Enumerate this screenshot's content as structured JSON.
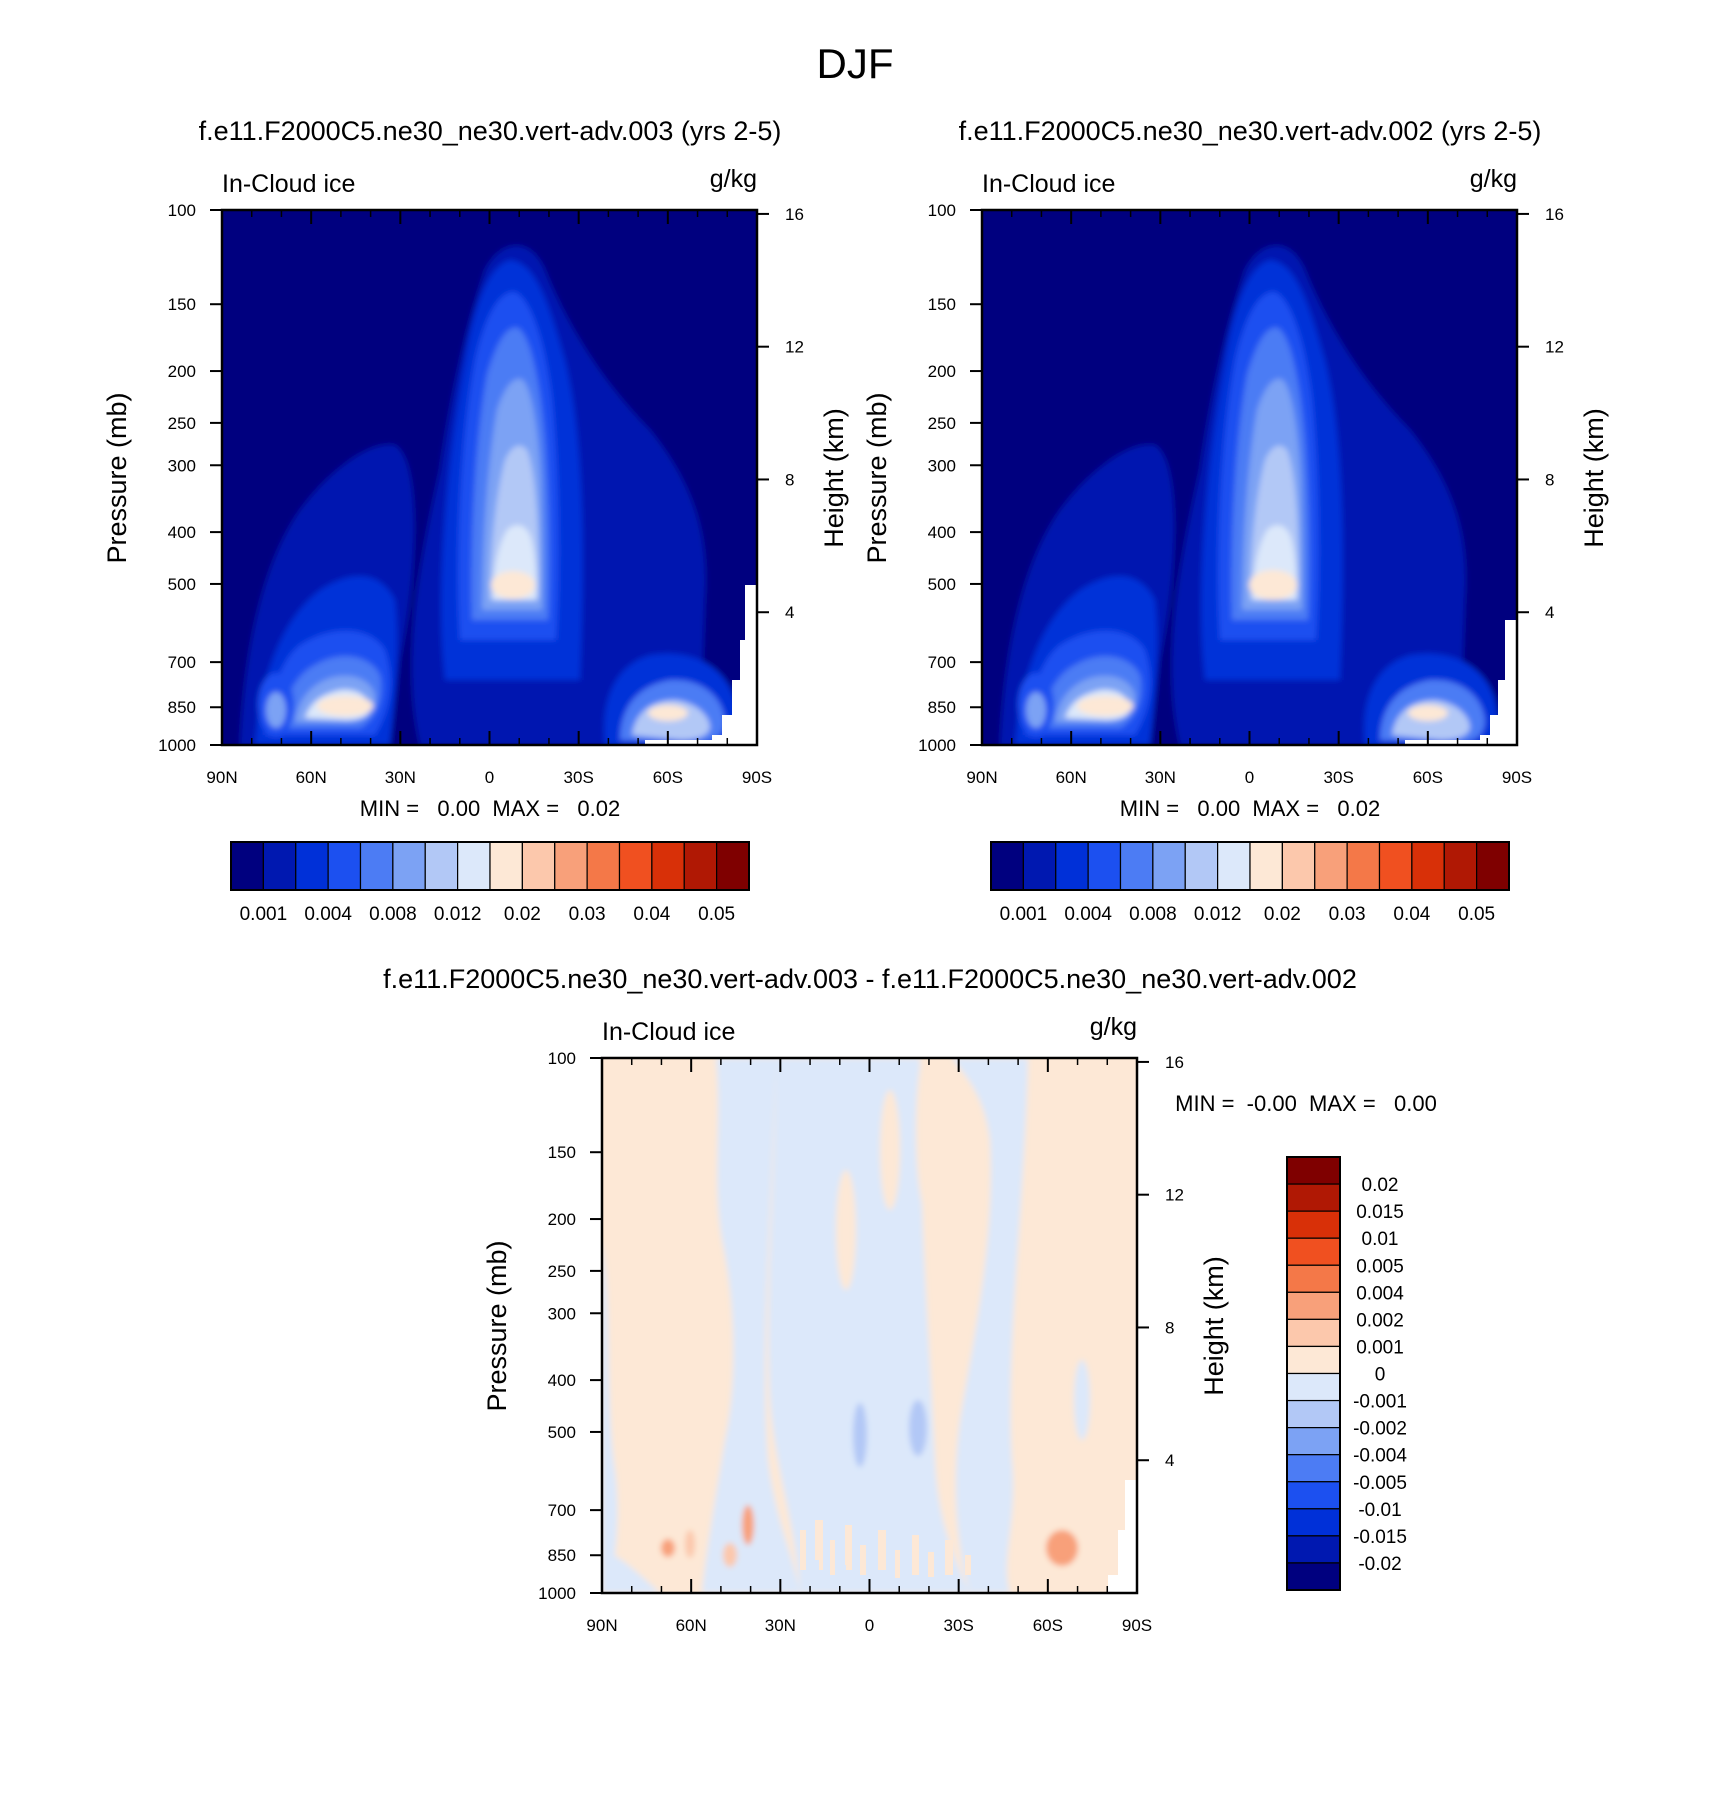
{
  "figure": {
    "title": "DJF"
  },
  "panels": [
    {
      "id": "case",
      "subtitle": "f.e11.F2000C5.ne30_ne30.vert-adv.003 (yrs 2-5)",
      "left_label": "In-Cloud ice",
      "right_label": "g/kg",
      "stats": "MIN =   0.00  MAX =   0.02"
    },
    {
      "id": "ref",
      "subtitle": "f.e11.F2000C5.ne30_ne30.vert-adv.002 (yrs 2-5)",
      "left_label": "In-Cloud ice",
      "right_label": "g/kg",
      "stats": "MIN =   0.00  MAX =   0.02"
    },
    {
      "id": "diff",
      "subtitle": "f.e11.F2000C5.ne30_ne30.vert-adv.003 - f.e11.F2000C5.ne30_ne30.vert-adv.002",
      "left_label": "In-Cloud ice",
      "right_label": "g/kg",
      "stats": "MIN =  -0.00  MAX =   0.00"
    }
  ],
  "colorbars": {
    "field": {
      "orientation": "horizontal",
      "colors": [
        "#00007f",
        "#0018b0",
        "#0030d8",
        "#1c50f0",
        "#4c7cf4",
        "#7ca2f4",
        "#b2c8f6",
        "#dce8fa",
        "#fde8d6",
        "#fcc8ac",
        "#f8a07a",
        "#f47848",
        "#f05020",
        "#d83008",
        "#b01804",
        "#7f0000"
      ],
      "labels": [
        "0.001",
        "0.004",
        "0.008",
        "0.012",
        "0.02",
        "0.03",
        "0.04",
        "0.05"
      ]
    },
    "diff": {
      "orientation": "vertical",
      "colors_top_to_bottom": [
        "#7f0000",
        "#b01804",
        "#d83008",
        "#f05020",
        "#f47848",
        "#f8a07a",
        "#fcc8ac",
        "#fde8d6",
        "#dce8fa",
        "#b2c8f6",
        "#7ca2f4",
        "#4c7cf4",
        "#1c50f0",
        "#0030d8",
        "#0018b0",
        "#00007f"
      ],
      "labels_top_to_bottom": [
        "0.02",
        "0.015",
        "0.01",
        "0.005",
        "0.004",
        "0.002",
        "0.001",
        "0",
        "-0.001",
        "-0.002",
        "-0.004",
        "-0.005",
        "-0.01",
        "-0.015",
        "-0.02"
      ]
    }
  },
  "chart_data": [
    {
      "type": "heatmap",
      "panel": "case",
      "x_ticks": [
        "90N",
        "60N",
        "30N",
        "0",
        "30S",
        "60S",
        "90S"
      ],
      "x_range": [
        "90N",
        "90S"
      ],
      "y_left_label": "Pressure (mb)",
      "y_left_ticks": [
        100,
        150,
        200,
        250,
        300,
        400,
        500,
        700,
        850,
        1000
      ],
      "y_left_range": [
        1000,
        100
      ],
      "y_left_scale": "log",
      "y_right_label": "Height (km)",
      "y_right_ticks": [
        4,
        8,
        12,
        16
      ],
      "grid": false
    },
    {
      "type": "heatmap",
      "panel": "ref",
      "x_ticks": [
        "90N",
        "60N",
        "30N",
        "0",
        "30S",
        "60S",
        "90S"
      ],
      "x_range": [
        "90N",
        "90S"
      ],
      "y_left_label": "Pressure (mb)",
      "y_left_ticks": [
        100,
        150,
        200,
        250,
        300,
        400,
        500,
        700,
        850,
        1000
      ],
      "y_left_range": [
        1000,
        100
      ],
      "y_left_scale": "log",
      "y_right_label": "Height (km)",
      "y_right_ticks": [
        4,
        8,
        12,
        16
      ],
      "grid": false
    },
    {
      "type": "heatmap",
      "panel": "diff",
      "x_ticks": [
        "90N",
        "60N",
        "30N",
        "0",
        "30S",
        "60S",
        "90S"
      ],
      "x_range": [
        "90N",
        "90S"
      ],
      "y_left_label": "Pressure (mb)",
      "y_left_ticks": [
        100,
        150,
        200,
        250,
        300,
        400,
        500,
        700,
        850,
        1000
      ],
      "y_left_range": [
        1000,
        100
      ],
      "y_left_scale": "log",
      "y_right_label": "Height (km)",
      "y_right_ticks": [
        4,
        8,
        12,
        16
      ],
      "grid": false
    }
  ]
}
